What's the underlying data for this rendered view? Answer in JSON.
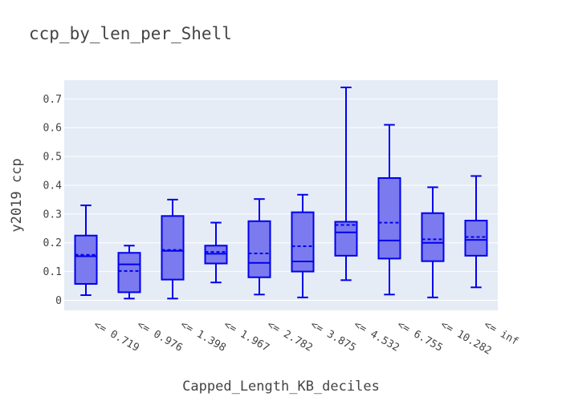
{
  "chart_data": {
    "type": "box",
    "title": "ccp_by_len_per_Shell",
    "xlabel": "Capped_Length_KB_deciles",
    "ylabel": "y2019 ccp",
    "ylim": [
      -0.035,
      0.765
    ],
    "yticks": [
      0,
      0.1,
      0.2,
      0.3,
      0.4,
      0.5,
      0.6,
      0.7
    ],
    "ytick_labels": [
      "0",
      "0.1",
      "0.2",
      "0.3",
      "0.4",
      "0.5",
      "0.6",
      "0.7"
    ],
    "grid": true,
    "categories": [
      "<= 0.719",
      "<= 0.976",
      "<= 1.398",
      "<= 1.967",
      "<= 2.782",
      "<= 3.875",
      "<= 4.532",
      "<= 6.755",
      "<= 10.282",
      "<= inf"
    ],
    "boxes": [
      {
        "min": 0.018,
        "q1": 0.057,
        "median": 0.153,
        "q3": 0.225,
        "max": 0.33,
        "mean": 0.158
      },
      {
        "min": 0.006,
        "q1": 0.028,
        "median": 0.125,
        "q3": 0.165,
        "max": 0.19,
        "mean": 0.102
      },
      {
        "min": 0.006,
        "q1": 0.072,
        "median": 0.172,
        "q3": 0.293,
        "max": 0.35,
        "mean": 0.175
      },
      {
        "min": 0.062,
        "q1": 0.128,
        "median": 0.162,
        "q3": 0.19,
        "max": 0.27,
        "mean": 0.168
      },
      {
        "min": 0.02,
        "q1": 0.08,
        "median": 0.13,
        "q3": 0.275,
        "max": 0.352,
        "mean": 0.163
      },
      {
        "min": 0.01,
        "q1": 0.1,
        "median": 0.135,
        "q3": 0.306,
        "max": 0.367,
        "mean": 0.188
      },
      {
        "min": 0.07,
        "q1": 0.155,
        "median": 0.236,
        "q3": 0.273,
        "max": 0.74,
        "mean": 0.262
      },
      {
        "min": 0.02,
        "q1": 0.145,
        "median": 0.208,
        "q3": 0.425,
        "max": 0.61,
        "mean": 0.27
      },
      {
        "min": 0.01,
        "q1": 0.136,
        "median": 0.2,
        "q3": 0.303,
        "max": 0.393,
        "mean": 0.212
      },
      {
        "min": 0.045,
        "q1": 0.155,
        "median": 0.21,
        "q3": 0.277,
        "max": 0.432,
        "mean": 0.22
      }
    ],
    "colors": {
      "box_line": "#0000ee",
      "box_fill": "#7b7bef",
      "plot_bg": "#e5ecf6",
      "grid": "#ffffff",
      "text": "#444444"
    }
  }
}
